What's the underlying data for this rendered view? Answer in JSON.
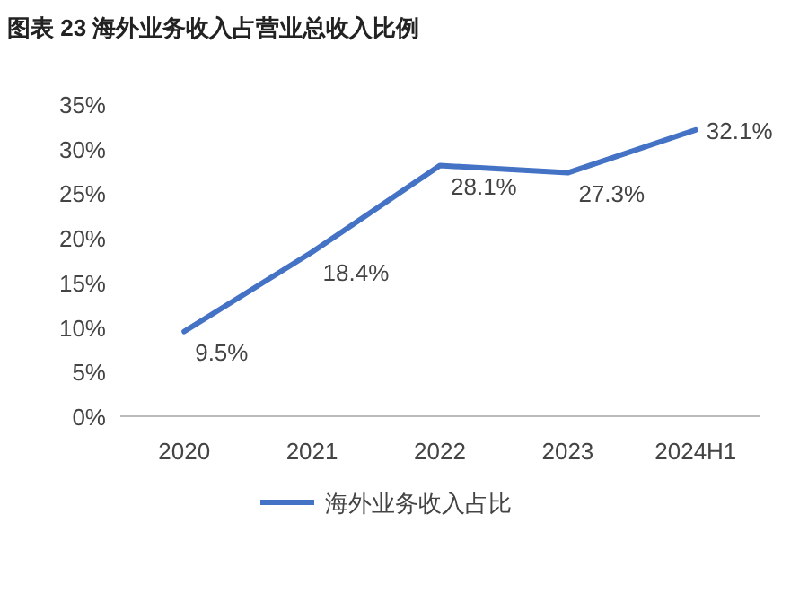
{
  "chart_data": {
    "type": "line",
    "title": "图表 23 海外业务收入占营业总收入比例",
    "categories": [
      "2020",
      "2021",
      "2022",
      "2023",
      "2024H1"
    ],
    "series": [
      {
        "name": "海外业务收入占比",
        "color": "#4472c4",
        "values": [
          9.5,
          18.4,
          28.1,
          27.3,
          32.1
        ],
        "value_labels": [
          "9.5%",
          "18.4%",
          "28.1%",
          "27.3%",
          "32.1%"
        ]
      }
    ],
    "ylim": [
      0,
      35
    ],
    "yticks": [
      {
        "value": 0,
        "label": "0%"
      },
      {
        "value": 5,
        "label": "5%"
      },
      {
        "value": 10,
        "label": "10%"
      },
      {
        "value": 15,
        "label": "15%"
      },
      {
        "value": 20,
        "label": "20%"
      },
      {
        "value": 25,
        "label": "25%"
      },
      {
        "value": 30,
        "label": "30%"
      },
      {
        "value": 35,
        "label": "35%"
      }
    ],
    "legend": "bottom",
    "grid": false
  }
}
